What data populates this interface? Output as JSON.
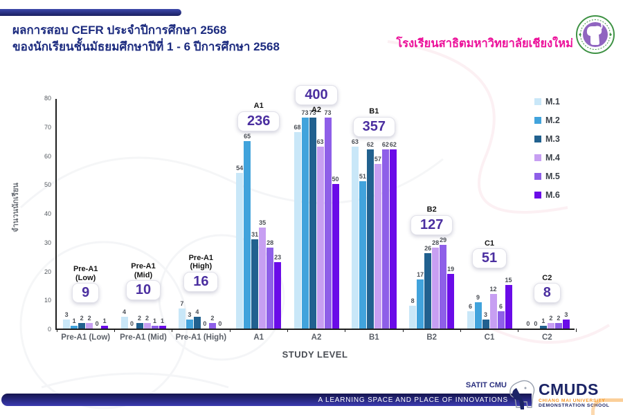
{
  "header": {
    "title_line1": "ผลการสอบ CEFR ประจำปีการศึกษา 2568",
    "title_line2": "ของนักเรียนชั้นมัธยมศึกษาปีที่ 1 - 6 ปีการศึกษา 2568",
    "school_name": "โรงเรียนสาธิตมหาวิทยาลัยเชียงใหม่",
    "title_color": "#1C2B7F",
    "school_name_color": "#EC119A"
  },
  "chart_data": {
    "type": "bar",
    "title": "",
    "xlabel": "STUDY LEVEL",
    "ylabel": "จำนวนนักเรียน",
    "ylim": [
      0,
      80
    ],
    "yticks": [
      0,
      10,
      20,
      30,
      40,
      50,
      60,
      70,
      80
    ],
    "grid": false,
    "legend_position": "right",
    "categories": [
      "Pre-A1 (Low)",
      "Pre-A1 (Mid)",
      "Pre-A1 (High)",
      "A1",
      "A2",
      "B1",
      "B2",
      "C1",
      "C2"
    ],
    "series": [
      {
        "name": "M.1",
        "color": "#C9E7F8",
        "values": [
          3,
          4,
          7,
          54,
          68,
          63,
          8,
          6,
          0
        ]
      },
      {
        "name": "M.2",
        "color": "#41A3DC",
        "values": [
          1,
          0,
          3,
          65,
          73,
          51,
          17,
          9,
          0
        ]
      },
      {
        "name": "M.3",
        "color": "#21618F",
        "values": [
          2,
          2,
          4,
          31,
          73,
          62,
          26,
          3,
          1
        ]
      },
      {
        "name": "M.4",
        "color": "#C79FF2",
        "values": [
          2,
          2,
          0,
          35,
          63,
          57,
          28,
          12,
          2
        ]
      },
      {
        "name": "M.5",
        "color": "#8E5FE8",
        "values": [
          0,
          1,
          2,
          28,
          73,
          62,
          29,
          6,
          2
        ]
      },
      {
        "name": "M.6",
        "color": "#6A0BE8",
        "values": [
          1,
          1,
          0,
          23,
          50,
          62,
          19,
          15,
          3
        ]
      }
    ],
    "totals": [
      {
        "group": "Pre-A1 (Low)",
        "label_lines": [
          "Pre-A1",
          "(Low)"
        ],
        "value": "9",
        "label_position": "above"
      },
      {
        "group": "Pre-A1 (Mid)",
        "label_lines": [
          "Pre-A1",
          "(Mid)"
        ],
        "value": "10",
        "label_position": "above"
      },
      {
        "group": "Pre-A1 (High)",
        "label_lines": [
          "Pre-A1",
          "(High)"
        ],
        "value": "16",
        "label_position": "above"
      },
      {
        "group": "A1",
        "label_lines": [
          "A1"
        ],
        "value": "236",
        "label_position": "above"
      },
      {
        "group": "A2",
        "label_lines": [
          "A2"
        ],
        "value": "400",
        "label_position": "below"
      },
      {
        "group": "B1",
        "label_lines": [
          "B1"
        ],
        "value": "357",
        "label_position": "above"
      },
      {
        "group": "B2",
        "label_lines": [
          "B2"
        ],
        "value": "127",
        "label_position": "above"
      },
      {
        "group": "C1",
        "label_lines": [
          "C1"
        ],
        "value": "51",
        "label_position": "above"
      },
      {
        "group": "C2",
        "label_lines": [
          "C2"
        ],
        "value": "8",
        "label_position": "above"
      }
    ],
    "total_value_color": "#4B2FA0"
  },
  "footer": {
    "satit_label": "SATIT CMU",
    "banner_text": "A LEARNING SPACE AND PLACE OF INNOVATIONS",
    "logo_acronym": "CMUDS",
    "logo_line1": "CHIANG MAI UNIVERSITY",
    "logo_line2": "DEMONSTRATION SCHOOL",
    "accent_orange": "#F7941D",
    "banner_navy": "#14144E"
  }
}
